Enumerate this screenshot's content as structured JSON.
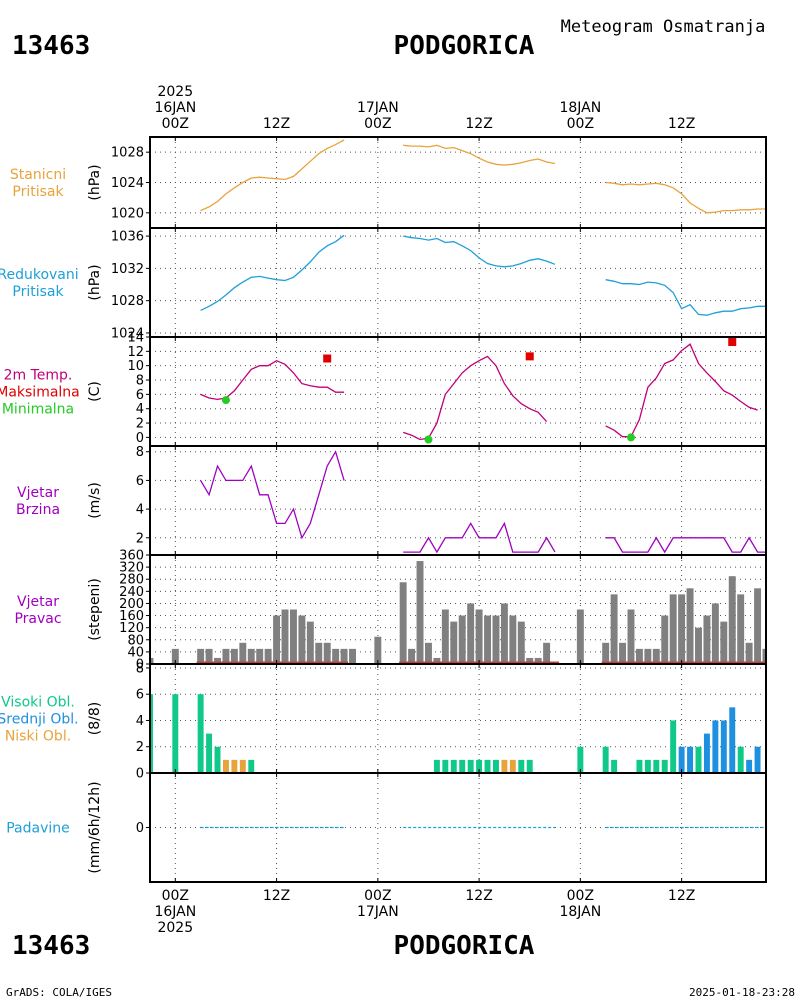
{
  "header": {
    "station_id": "13463",
    "station_name": "PODGORICA",
    "meteogram_title": "Meteogram Osmatranja"
  },
  "footer": {
    "credit": "GrADS: COLA/IGES",
    "timestamp": "2025-01-18-23:28"
  },
  "time_axis": {
    "top_labels": [
      {
        "lines": [
          "2025",
          "16JAN",
          "00Z"
        ],
        "h": 0
      },
      {
        "lines": [
          "12Z"
        ],
        "h": 12
      },
      {
        "lines": [
          "17JAN",
          "00Z"
        ],
        "h": 24
      },
      {
        "lines": [
          "12Z"
        ],
        "h": 36
      },
      {
        "lines": [
          "18JAN",
          "00Z"
        ],
        "h": 48
      },
      {
        "lines": [
          "12Z"
        ],
        "h": 60
      }
    ],
    "bottom_labels": [
      {
        "lines": [
          "00Z",
          "16JAN",
          "2025"
        ],
        "h": 0
      },
      {
        "lines": [
          "12Z"
        ],
        "h": 12
      },
      {
        "lines": [
          "00Z",
          "17JAN"
        ],
        "h": 24
      },
      {
        "lines": [
          "12Z"
        ],
        "h": 36
      },
      {
        "lines": [
          "00Z",
          "18JAN"
        ],
        "h": 48
      },
      {
        "lines": [
          "12Z"
        ],
        "h": 60
      }
    ],
    "range_hours": [
      -3,
      70
    ]
  },
  "colors": {
    "station_pressure": "#e8a33c",
    "reduced_pressure": "#1ea0d8",
    "temperature": "#c0007a",
    "tmax": "#e00000",
    "tmin": "#22cc22",
    "wind": "#a000c0",
    "wind_dir_bar": "#808080",
    "wind_dir_base": "#c04040",
    "cloud_high": "#10c888",
    "cloud_mid": "#1e90e0",
    "cloud_low": "#e8a33c",
    "precip": "#1ea0d8"
  },
  "chart_data": [
    {
      "type": "line",
      "panel": "station_pressure",
      "label_lines": [
        "Stanicni",
        "Pritisak"
      ],
      "label_color": "#e8a33c",
      "ylabel": "(hPa)",
      "ylim": [
        1018,
        1030
      ],
      "yticks": [
        1020,
        1024,
        1028
      ],
      "series": [
        {
          "color": "#e8a33c",
          "x": [
            3,
            4,
            5,
            6,
            7,
            8,
            9,
            10,
            11,
            12,
            13,
            14,
            15,
            16,
            17,
            18,
            19,
            20,
            null,
            27,
            28,
            29,
            30,
            31,
            32,
            33,
            34,
            35,
            36,
            37,
            38,
            39,
            40,
            41,
            42,
            43,
            44,
            45,
            null,
            51,
            52,
            53,
            54,
            55,
            56,
            57,
            58,
            59,
            60,
            61,
            62,
            63,
            64,
            65,
            66,
            67,
            68,
            69,
            70
          ],
          "y": [
            1020.3,
            1020.8,
            1021.5,
            1022.5,
            1023.3,
            1024.0,
            1024.6,
            1024.7,
            1024.6,
            1024.5,
            1024.4,
            1024.8,
            1025.8,
            1026.8,
            1027.8,
            1028.5,
            1029.0,
            1029.6,
            null,
            1028.9,
            1028.8,
            1028.8,
            1028.7,
            1028.9,
            1028.5,
            1028.6,
            1028.2,
            1027.8,
            1027.2,
            1026.7,
            1026.4,
            1026.3,
            1026.4,
            1026.6,
            1026.9,
            1027.1,
            1026.7,
            1026.5,
            null,
            1024.0,
            1023.9,
            1023.7,
            1023.8,
            1023.7,
            1023.8,
            1023.9,
            1023.7,
            1023.3,
            1022.5,
            1021.3,
            1020.6,
            1020.0,
            1020.1,
            1020.3,
            1020.3,
            1020.4,
            1020.4,
            1020.5,
            1020.5
          ]
        }
      ]
    },
    {
      "type": "line",
      "panel": "reduced_pressure",
      "label_lines": [
        "Redukovani",
        "Pritisak"
      ],
      "label_color": "#1ea0d8",
      "ylabel": "(hPa)",
      "ylim": [
        1023.5,
        1037
      ],
      "yticks": [
        1024,
        1028,
        1032,
        1036
      ],
      "series": [
        {
          "color": "#1ea0d8",
          "x": [
            3,
            4,
            5,
            6,
            7,
            8,
            9,
            10,
            11,
            12,
            13,
            14,
            15,
            16,
            17,
            18,
            19,
            20,
            null,
            27,
            28,
            29,
            30,
            31,
            32,
            33,
            34,
            35,
            36,
            37,
            38,
            39,
            40,
            41,
            42,
            43,
            44,
            45,
            null,
            51,
            52,
            53,
            54,
            55,
            56,
            57,
            58,
            59,
            60,
            61,
            62,
            63,
            64,
            65,
            66,
            67,
            68,
            69,
            70
          ],
          "y": [
            1026.8,
            1027.3,
            1027.9,
            1028.7,
            1029.6,
            1030.3,
            1030.9,
            1031.0,
            1030.8,
            1030.6,
            1030.5,
            1030.9,
            1031.8,
            1032.8,
            1034.0,
            1034.8,
            1035.3,
            1036.1,
            null,
            1036.0,
            1035.8,
            1035.7,
            1035.5,
            1035.7,
            1035.2,
            1035.3,
            1034.8,
            1034.2,
            1033.3,
            1032.6,
            1032.3,
            1032.2,
            1032.3,
            1032.6,
            1033.0,
            1033.2,
            1032.9,
            1032.5,
            null,
            1030.6,
            1030.4,
            1030.1,
            1030.1,
            1030.0,
            1030.3,
            1030.2,
            1029.9,
            1029.0,
            1027.0,
            1027.5,
            1026.3,
            1026.2,
            1026.5,
            1026.7,
            1026.7,
            1027.0,
            1027.1,
            1027.3,
            1027.3
          ]
        }
      ]
    },
    {
      "type": "line",
      "panel": "temperature",
      "label_lines": [
        "2m Temp.",
        "Maksimalna",
        "Minimalna"
      ],
      "label_colors": [
        "#c0007a",
        "#e00000",
        "#22cc22"
      ],
      "ylabel": "(C)",
      "ylim": [
        -1.2,
        14
      ],
      "yticks": [
        0,
        2,
        4,
        6,
        8,
        10,
        12,
        14
      ],
      "series": [
        {
          "name": "2m Temp.",
          "color": "#c0007a",
          "x": [
            3,
            4,
            5,
            6,
            7,
            8,
            9,
            10,
            11,
            12,
            13,
            14,
            15,
            16,
            17,
            18,
            19,
            20,
            null,
            27,
            28,
            29,
            30,
            31,
            32,
            33,
            34,
            35,
            36,
            37,
            38,
            39,
            40,
            41,
            42,
            43,
            44,
            45,
            null,
            51,
            52,
            53,
            54,
            55,
            56,
            57,
            58,
            59,
            60,
            61,
            62,
            63,
            64,
            65,
            66,
            67,
            68,
            69,
            70
          ],
          "y": [
            6.0,
            5.5,
            5.3,
            5.5,
            6.5,
            8.0,
            9.5,
            10.0,
            10.0,
            10.7,
            10.2,
            9.0,
            7.5,
            7.2,
            7.0,
            7.0,
            6.3,
            6.3,
            null,
            0.7,
            0.3,
            -0.3,
            -0.1,
            2.0,
            6.0,
            7.5,
            9.0,
            10.0,
            10.7,
            11.3,
            10.0,
            7.5,
            5.8,
            4.7,
            4.0,
            3.5,
            2.2,
            null,
            null,
            1.6,
            1.0,
            0.1,
            0.1,
            2.5,
            7.0,
            8.3,
            10.3,
            10.8,
            12.1,
            13.0,
            10.3,
            9.0,
            7.8,
            6.5,
            5.9,
            5.0,
            4.2,
            3.8,
            null
          ]
        }
      ],
      "tmax_points": [
        {
          "x": 18,
          "y": 11.0
        },
        {
          "x": 42,
          "y": 11.3
        },
        {
          "x": 66,
          "y": 13.3
        }
      ],
      "tmin_points": [
        {
          "x": 6,
          "y": 5.2
        },
        {
          "x": 30,
          "y": -0.3
        },
        {
          "x": 54,
          "y": 0.0
        }
      ]
    },
    {
      "type": "line",
      "panel": "wind_speed",
      "label_lines": [
        "Vjetar",
        "Brzina"
      ],
      "label_color": "#a000c0",
      "ylabel": "(m/s)",
      "ylim": [
        0.8,
        8.4
      ],
      "yticks": [
        2,
        4,
        6,
        8
      ],
      "series": [
        {
          "color": "#a000c0",
          "x": [
            3,
            4,
            5,
            6,
            7,
            8,
            9,
            10,
            11,
            12,
            13,
            14,
            15,
            16,
            17,
            18,
            19,
            20,
            null,
            27,
            28,
            29,
            30,
            31,
            32,
            33,
            34,
            35,
            36,
            37,
            38,
            39,
            40,
            41,
            42,
            43,
            44,
            45,
            null,
            51,
            52,
            53,
            54,
            55,
            56,
            57,
            58,
            59,
            60,
            61,
            62,
            63,
            64,
            65,
            66,
            67,
            68,
            69,
            70
          ],
          "y": [
            6,
            5,
            7,
            6,
            6,
            6,
            7,
            5,
            5,
            3,
            3,
            4,
            2,
            3,
            5,
            7,
            8,
            6,
            null,
            1,
            1,
            1,
            2,
            1,
            2,
            2,
            2,
            3,
            2,
            2,
            2,
            3,
            1,
            1,
            1,
            1,
            2,
            1,
            null,
            2,
            2,
            1,
            1,
            1,
            1,
            2,
            1,
            2,
            2,
            2,
            2,
            2,
            2,
            2,
            1,
            1,
            2,
            1,
            1
          ]
        }
      ]
    },
    {
      "type": "bar",
      "panel": "wind_direction",
      "label_lines": [
        "Vjetar",
        "Pravac"
      ],
      "label_color": "#a000c0",
      "ylabel": "(stepeni)",
      "ylim": [
        0,
        360
      ],
      "yticks": [
        0,
        40,
        80,
        120,
        160,
        200,
        240,
        280,
        320,
        360
      ],
      "x": [
        -3,
        0,
        3,
        4,
        5,
        6,
        7,
        8,
        9,
        10,
        11,
        12,
        13,
        14,
        15,
        16,
        17,
        18,
        19,
        20,
        21,
        24,
        27,
        28,
        29,
        30,
        31,
        32,
        33,
        34,
        35,
        36,
        37,
        38,
        39,
        40,
        41,
        42,
        43,
        44,
        48,
        51,
        52,
        53,
        54,
        55,
        56,
        57,
        58,
        59,
        60,
        61,
        62,
        63,
        64,
        65,
        66,
        67,
        68,
        69,
        70
      ],
      "values": [
        20,
        50,
        50,
        50,
        20,
        50,
        50,
        70,
        50,
        50,
        50,
        160,
        180,
        180,
        160,
        140,
        70,
        70,
        50,
        50,
        50,
        90,
        270,
        50,
        340,
        70,
        20,
        180,
        140,
        160,
        200,
        180,
        160,
        160,
        200,
        160,
        140,
        20,
        20,
        70,
        180,
        70,
        230,
        70,
        180,
        50,
        50,
        50,
        160,
        230,
        230,
        250,
        120,
        160,
        200,
        140,
        290,
        230,
        70,
        250,
        50
      ]
    },
    {
      "type": "bar",
      "panel": "cloud_cover",
      "label_lines": [
        "Visoki Obl.",
        "Srednji Obl.",
        "Niski Obl."
      ],
      "label_colors": [
        "#10c888",
        "#1e90e0",
        "#e8a33c"
      ],
      "ylabel": "(8/8)",
      "ylim": [
        0,
        8.3
      ],
      "yticks": [
        0,
        2,
        4,
        6,
        8
      ],
      "x": [
        -3,
        0,
        3,
        4,
        5,
        6,
        7,
        8,
        9,
        31,
        32,
        33,
        34,
        35,
        36,
        37,
        38,
        39,
        40,
        41,
        42,
        48,
        51,
        52,
        55,
        56,
        57,
        58,
        59,
        60,
        61,
        62,
        63,
        64,
        65,
        66,
        67,
        68,
        69
      ],
      "series": [
        {
          "name": "Visoki Obl.",
          "values": [
            6,
            6,
            6,
            3,
            2,
            1,
            1,
            1,
            1,
            1,
            1,
            1,
            1,
            1,
            1,
            1,
            1,
            1,
            1,
            1,
            1,
            2,
            2,
            1,
            1,
            1,
            1,
            1,
            4,
            2,
            2,
            2,
            2,
            4,
            4,
            5,
            2,
            1,
            1
          ]
        },
        {
          "name": "Srednji Obl.",
          "values": [
            0,
            0,
            0,
            0,
            0,
            0,
            0,
            0,
            0,
            0,
            0,
            0,
            0,
            0,
            0,
            0,
            0,
            0,
            0,
            0,
            0,
            0,
            0,
            0,
            0,
            0,
            0,
            0,
            0,
            2,
            2,
            1,
            3,
            4,
            4,
            5,
            1,
            1,
            2
          ]
        },
        {
          "name": "Niski Obl.",
          "values": [
            0,
            0,
            0,
            0,
            0,
            1,
            1,
            1,
            0,
            0,
            0,
            0,
            0,
            0,
            0,
            0,
            0,
            1,
            1,
            0,
            0,
            0,
            0,
            0,
            0,
            0,
            0,
            0,
            0,
            0,
            0,
            0,
            0,
            0,
            0,
            0,
            0,
            0,
            0
          ]
        }
      ]
    },
    {
      "type": "line",
      "panel": "precipitation",
      "label_lines": [
        "Padavine"
      ],
      "label_color": "#1ea0d8",
      "ylabel": "(mm/6h/12h)",
      "ylim": [
        -1,
        1
      ],
      "yticks": [
        0
      ],
      "series": [
        {
          "color": "#1ea0d8",
          "x": [
            3,
            4,
            5,
            6,
            7,
            8,
            9,
            10,
            11,
            12,
            13,
            14,
            15,
            16,
            17,
            18,
            19,
            20,
            null,
            27,
            28,
            29,
            30,
            31,
            32,
            33,
            34,
            35,
            36,
            37,
            38,
            39,
            40,
            41,
            42,
            43,
            44,
            45,
            null,
            51,
            52,
            53,
            54,
            55,
            56,
            57,
            58,
            59,
            60,
            61,
            62,
            63,
            64,
            65,
            66,
            67,
            68,
            69,
            70
          ],
          "y": [
            0,
            0,
            0,
            0,
            0,
            0,
            0,
            0,
            0,
            0,
            0,
            0,
            0,
            0,
            0,
            0,
            0,
            0,
            null,
            0,
            0,
            0,
            0,
            0,
            0,
            0,
            0,
            0,
            0,
            0,
            0,
            0,
            0,
            0,
            0,
            0,
            0,
            0,
            null,
            0,
            0,
            0,
            0,
            0,
            0,
            0,
            0,
            0,
            0,
            0,
            0,
            0,
            0,
            0,
            0,
            0,
            0,
            0,
            0
          ]
        }
      ]
    }
  ]
}
